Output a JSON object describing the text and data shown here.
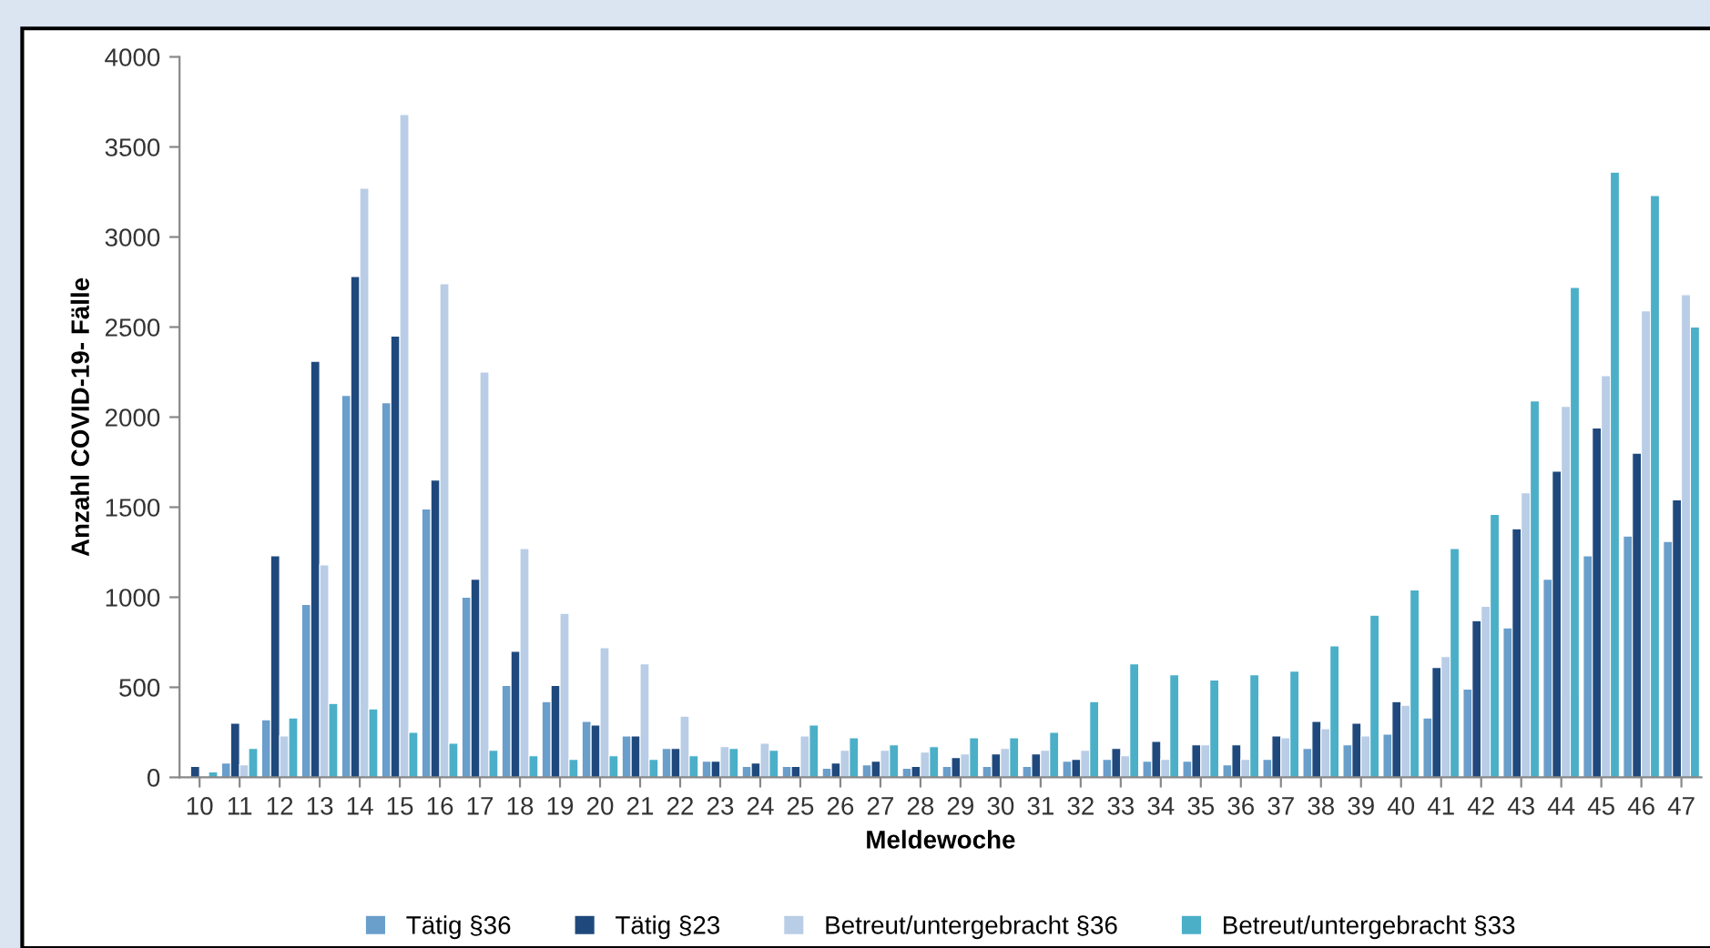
{
  "chart_data": {
    "type": "bar",
    "xlabel": "Meldewoche",
    "ylabel": "Anzahl COVID-19- Fälle",
    "categories": [
      "10",
      "11",
      "12",
      "13",
      "14",
      "15",
      "16",
      "17",
      "18",
      "19",
      "20",
      "21",
      "22",
      "23",
      "24",
      "25",
      "26",
      "27",
      "28",
      "29",
      "30",
      "31",
      "32",
      "33",
      "34",
      "35",
      "36",
      "37",
      "38",
      "39",
      "40",
      "41",
      "42",
      "43",
      "44",
      "45",
      "46",
      "47"
    ],
    "series": [
      {
        "name": "Tätig §36",
        "color": "#6a9ecb",
        "values": [
          null,
          80,
          320,
          960,
          2120,
          2080,
          1490,
          1000,
          510,
          420,
          310,
          230,
          160,
          90,
          60,
          60,
          50,
          70,
          50,
          60,
          60,
          60,
          90,
          100,
          90,
          90,
          70,
          100,
          160,
          180,
          240,
          330,
          490,
          830,
          1100,
          1230,
          1340,
          1310
        ]
      },
      {
        "name": "Tätig §23",
        "color": "#1f497d",
        "values": [
          60,
          300,
          1230,
          2310,
          2780,
          2450,
          1650,
          1100,
          700,
          510,
          290,
          230,
          160,
          90,
          80,
          60,
          80,
          90,
          60,
          110,
          130,
          130,
          100,
          160,
          200,
          180,
          180,
          230,
          310,
          300,
          420,
          610,
          870,
          1380,
          1700,
          1940,
          1800,
          1540
        ]
      },
      {
        "name": "Betreut/untergebracht §36",
        "color": "#b9cde6",
        "values": [
          null,
          70,
          230,
          1180,
          3270,
          3680,
          2740,
          2250,
          1270,
          910,
          720,
          630,
          340,
          170,
          190,
          230,
          150,
          150,
          140,
          130,
          160,
          150,
          150,
          120,
          100,
          180,
          100,
          220,
          270,
          230,
          400,
          670,
          950,
          1580,
          2060,
          2230,
          2590,
          2680
        ]
      },
      {
        "name": "Betreut/untergebracht §33",
        "color": "#4bafc8",
        "values": [
          30,
          160,
          330,
          410,
          380,
          250,
          190,
          150,
          120,
          100,
          120,
          100,
          120,
          160,
          150,
          290,
          220,
          180,
          170,
          220,
          220,
          250,
          420,
          630,
          570,
          540,
          570,
          590,
          730,
          900,
          1040,
          1270,
          1460,
          2090,
          2720,
          3360,
          3230,
          2500
        ]
      }
    ],
    "ylim": [
      0,
      4000
    ],
    "yticks": [
      0,
      500,
      1000,
      1500,
      2000,
      2500,
      3000,
      3500,
      4000
    ],
    "grid": false,
    "legend": "bottom"
  }
}
